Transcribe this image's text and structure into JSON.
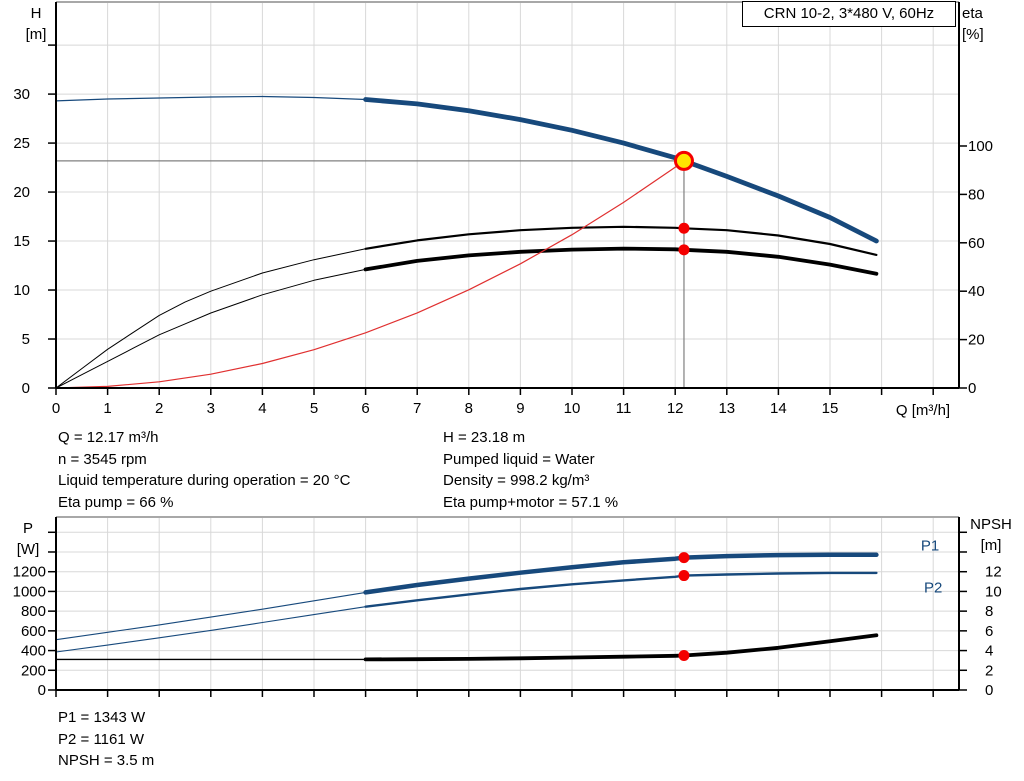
{
  "info": {
    "left": [
      "Q = 12.17 m³/h",
      "n = 3545 rpm",
      "Liquid temperature during operation = 20 °C",
      "Eta pump = 66 %"
    ],
    "right": [
      "H = 23.18 m",
      "Pumped liquid = Water",
      "Density = 998.2 kg/m³",
      "Eta pump+motor = 57.1 %"
    ],
    "bottom": [
      "P1 = 1343 W",
      "P2 = 1161 W",
      "NPSH = 3.5 m"
    ]
  },
  "colors": {
    "curve_blue": "#17497C",
    "curve_black": "#000000",
    "system_red": "#E03030",
    "marker_red": "#F40000",
    "marker_yellow": "#FFE400",
    "grid": "#D8D8D8",
    "crosshair_gray": "#808080",
    "top_border_gray": "#A8A8A8"
  },
  "chart_data": [
    {
      "type": "line",
      "title": "CRN 10-2, 3*480 V, 60Hz",
      "xlabel": "Q [m³/h]",
      "x": {
        "min": 0,
        "max": 17.5,
        "ticks": [
          0,
          1,
          2,
          3,
          4,
          5,
          6,
          7,
          8,
          9,
          10,
          11,
          12,
          13,
          14,
          15,
          16,
          17
        ],
        "tick_labels": [
          "0",
          "1",
          "2",
          "3",
          "4",
          "5",
          "6",
          "7",
          "8",
          "9",
          "10",
          "11",
          "12",
          "13",
          "14",
          "15",
          "",
          ""
        ]
      },
      "left_axis": {
        "label_lines": [
          "H",
          "[m]"
        ],
        "min": 0,
        "max": 39.4,
        "ticks": [
          0,
          5,
          10,
          15,
          20,
          25,
          30,
          35
        ],
        "tick_labels": [
          "0",
          "5",
          "10",
          "15",
          "20",
          "25",
          "30",
          ""
        ]
      },
      "right_axis": {
        "label_lines": [
          "eta",
          "[%]"
        ],
        "min": 0,
        "max": 159.5,
        "ticks": [
          0,
          20,
          40,
          60,
          80,
          100
        ],
        "tick_labels": [
          "0",
          "20",
          "40",
          "60",
          "80",
          "100"
        ]
      },
      "series": [
        {
          "name": "pump-curve-QH",
          "axis": "left",
          "color": "#17497C",
          "width": 1.2,
          "width_main": 4.8,
          "split": 6,
          "points": [
            [
              0,
              29.3
            ],
            [
              1,
              29.5
            ],
            [
              2,
              29.6
            ],
            [
              3,
              29.7
            ],
            [
              4,
              29.75
            ],
            [
              5,
              29.65
            ],
            [
              6,
              29.45
            ],
            [
              7,
              29.0
            ],
            [
              8,
              28.3
            ],
            [
              9,
              27.4
            ],
            [
              10,
              26.3
            ],
            [
              11,
              25.0
            ],
            [
              12,
              23.5
            ],
            [
              12.17,
              23.18
            ],
            [
              13,
              21.6
            ],
            [
              14,
              19.6
            ],
            [
              15,
              17.4
            ],
            [
              15.9,
              15.0
            ]
          ]
        },
        {
          "name": "efficiency-pump-curve",
          "axis": "right",
          "color": "#000000",
          "width": 1,
          "width_main": 2.2,
          "split": 6,
          "points": [
            [
              0,
              0
            ],
            [
              0.5,
              8
            ],
            [
              1,
              16
            ],
            [
              1.5,
              23
            ],
            [
              2,
              30
            ],
            [
              2.5,
              35.5
            ],
            [
              3,
              40
            ],
            [
              4,
              47.5
            ],
            [
              5,
              53
            ],
            [
              6,
              57.5
            ],
            [
              7,
              61
            ],
            [
              8,
              63.5
            ],
            [
              9,
              65.2
            ],
            [
              10,
              66.2
            ],
            [
              11,
              66.6
            ],
            [
              12,
              66.2
            ],
            [
              12.17,
              66
            ],
            [
              13,
              65.2
            ],
            [
              14,
              63
            ],
            [
              15,
              59.5
            ],
            [
              15.9,
              55
            ]
          ]
        },
        {
          "name": "efficiency-pump-motor-curve",
          "axis": "right",
          "color": "#000000",
          "width": 1,
          "width_main": 3.8,
          "split": 6,
          "points": [
            [
              0,
              0
            ],
            [
              0.5,
              5.5
            ],
            [
              1,
              11
            ],
            [
              1.5,
              16.5
            ],
            [
              2,
              22
            ],
            [
              2.5,
              26.5
            ],
            [
              3,
              31
            ],
            [
              4,
              38.5
            ],
            [
              5,
              44.5
            ],
            [
              6,
              49
            ],
            [
              7,
              52.5
            ],
            [
              8,
              54.8
            ],
            [
              9,
              56.3
            ],
            [
              10,
              57.2
            ],
            [
              11,
              57.6
            ],
            [
              12,
              57.3
            ],
            [
              12.17,
              57.1
            ],
            [
              13,
              56.3
            ],
            [
              14,
              54.2
            ],
            [
              15,
              51
            ],
            [
              15.9,
              47.2
            ]
          ]
        },
        {
          "name": "system-curve",
          "axis": "left",
          "color": "#E03030",
          "width": 1.2,
          "width_main": 1.2,
          "split": 99,
          "points": [
            [
              0,
              0
            ],
            [
              1,
              0.16
            ],
            [
              2,
              0.63
            ],
            [
              3,
              1.41
            ],
            [
              4,
              2.5
            ],
            [
              5,
              3.91
            ],
            [
              6,
              5.63
            ],
            [
              7,
              7.67
            ],
            [
              8,
              10.02
            ],
            [
              9,
              12.68
            ],
            [
              10,
              15.65
            ],
            [
              11,
              18.94
            ],
            [
              12,
              22.54
            ],
            [
              12.17,
              23.18
            ]
          ]
        }
      ],
      "crosshair": {
        "q": 12.17,
        "v": 23.18,
        "axis": "left",
        "color": "#808080"
      },
      "markers": [
        {
          "name": "duty-point",
          "style": "duty",
          "q": 12.17,
          "axis": "left",
          "v": 23.18,
          "fill": "#FFE400",
          "ring": "#F40000"
        },
        {
          "name": "eta-pump-duty-dot",
          "style": "dot",
          "q": 12.17,
          "axis": "right",
          "v": 66,
          "fill": "#F40000"
        },
        {
          "name": "eta-pump-motor-duty-dot",
          "style": "dot",
          "q": 12.17,
          "axis": "right",
          "v": 57.1,
          "fill": "#F40000"
        }
      ]
    },
    {
      "type": "line",
      "title": "",
      "xlabel": "",
      "x": {
        "min": 0,
        "max": 17.5,
        "ticks": [
          0,
          1,
          2,
          3,
          4,
          5,
          6,
          7,
          8,
          9,
          10,
          11,
          12,
          13,
          14,
          15,
          16,
          17
        ],
        "tick_labels": [
          "",
          "",
          "",
          "",
          "",
          "",
          "",
          "",
          "",
          "",
          "",
          "",
          "",
          "",
          "",
          "",
          "",
          ""
        ]
      },
      "left_axis": {
        "label_lines": [
          "P",
          "[W]"
        ],
        "min": 0,
        "max": 1755,
        "ticks": [
          0,
          200,
          400,
          600,
          800,
          1000,
          1200,
          1400,
          1600
        ],
        "tick_labels": [
          "0",
          "200",
          "400",
          "600",
          "800",
          "1000",
          "1200",
          "",
          ""
        ]
      },
      "right_axis": {
        "label_lines": [
          "NPSH",
          "[m]"
        ],
        "min": 0,
        "max": 17.55,
        "ticks": [
          0,
          2,
          4,
          6,
          8,
          10,
          12,
          14,
          16
        ],
        "tick_labels": [
          "0",
          "2",
          "4",
          "6",
          "8",
          "10",
          "12",
          "",
          ""
        ]
      },
      "series": [
        {
          "name": "power-P1-curve",
          "axis": "left",
          "color": "#17497C",
          "width": 1.1,
          "width_main": 4.5,
          "split": 6,
          "points": [
            [
              0,
              510
            ],
            [
              1,
              585
            ],
            [
              2,
              660
            ],
            [
              3,
              740
            ],
            [
              4,
              820
            ],
            [
              5,
              905
            ],
            [
              6,
              990
            ],
            [
              7,
              1065
            ],
            [
              8,
              1130
            ],
            [
              9,
              1190
            ],
            [
              10,
              1245
            ],
            [
              11,
              1295
            ],
            [
              12,
              1332
            ],
            [
              12.17,
              1343
            ],
            [
              13,
              1358
            ],
            [
              14,
              1368
            ],
            [
              15,
              1372
            ],
            [
              15.9,
              1372
            ]
          ]
        },
        {
          "name": "power-P2-curve",
          "axis": "left",
          "color": "#17497C",
          "width": 1.1,
          "width_main": 2.4,
          "split": 6,
          "points": [
            [
              0,
              385
            ],
            [
              1,
              455
            ],
            [
              2,
              530
            ],
            [
              3,
              605
            ],
            [
              4,
              685
            ],
            [
              5,
              765
            ],
            [
              6,
              845
            ],
            [
              7,
              910
            ],
            [
              8,
              970
            ],
            [
              9,
              1025
            ],
            [
              10,
              1072
            ],
            [
              11,
              1112
            ],
            [
              12,
              1148
            ],
            [
              12.17,
              1161
            ],
            [
              13,
              1172
            ],
            [
              14,
              1182
            ],
            [
              15,
              1188
            ],
            [
              15.9,
              1188
            ]
          ]
        },
        {
          "name": "npsh-curve",
          "axis": "right",
          "color": "#000000",
          "width": 1.4,
          "width_main": 3.8,
          "split": 6,
          "points": [
            [
              0,
              3.1
            ],
            [
              2,
              3.1
            ],
            [
              4,
              3.1
            ],
            [
              6,
              3.1
            ],
            [
              7,
              3.12
            ],
            [
              8,
              3.16
            ],
            [
              9,
              3.22
            ],
            [
              10,
              3.3
            ],
            [
              11,
              3.38
            ],
            [
              12,
              3.47
            ],
            [
              12.17,
              3.5
            ],
            [
              13,
              3.78
            ],
            [
              14,
              4.28
            ],
            [
              15,
              4.95
            ],
            [
              15.9,
              5.55
            ]
          ]
        }
      ],
      "markers": [
        {
          "name": "p1-duty-dot",
          "style": "dot",
          "q": 12.17,
          "axis": "left",
          "v": 1343,
          "fill": "#F40000"
        },
        {
          "name": "p2-duty-dot",
          "style": "dot",
          "q": 12.17,
          "axis": "left",
          "v": 1161,
          "fill": "#F40000"
        },
        {
          "name": "npsh-duty-dot",
          "style": "dot",
          "q": 12.17,
          "axis": "right",
          "v": 3.5,
          "fill": "#F40000"
        }
      ],
      "annotations": [
        {
          "text": "P1",
          "q": 16.94,
          "axis": "left",
          "v": 1465,
          "color": "#17497C"
        },
        {
          "text": "P2",
          "q": 17.0,
          "axis": "left",
          "v": 1040,
          "color": "#17497C"
        }
      ]
    }
  ]
}
